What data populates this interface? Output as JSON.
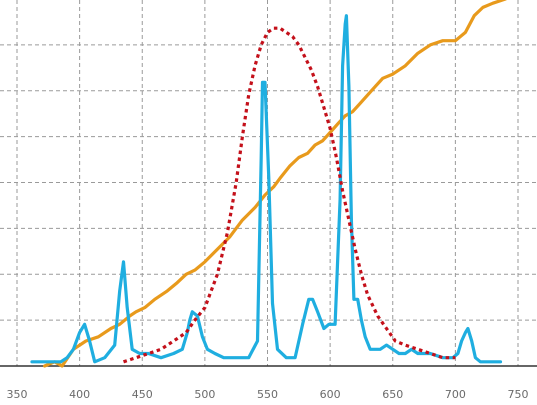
{
  "chart_data": {
    "type": "line",
    "title": "",
    "xlabel": "",
    "ylabel": "",
    "xlim": [
      350,
      750
    ],
    "ylim": [
      0,
      1
    ],
    "x_ticks": [
      350,
      400,
      450,
      500,
      550,
      600,
      650,
      700,
      750
    ],
    "x_tick_labels": [
      "350",
      "400",
      "450",
      "500",
      "550",
      "600",
      "650",
      "700",
      "750"
    ],
    "y_grid_values": [
      0.11,
      0.22,
      0.33,
      0.44,
      0.55,
      0.66,
      0.77,
      0.88
    ],
    "grid": true,
    "legend": "none",
    "series": [
      {
        "style": "solid",
        "color": "#e89a1c",
        "x": [
          372,
          380,
          386,
          395,
          405,
          415,
          425,
          432,
          440,
          445,
          452,
          460,
          470,
          478,
          485,
          492,
          500,
          510,
          520,
          530,
          540,
          548,
          555,
          560,
          568,
          575,
          582,
          588,
          594,
          600,
          606,
          612,
          618,
          624,
          630,
          636,
          642,
          650,
          660,
          670,
          680,
          690,
          700,
          708,
          715,
          722,
          730,
          740
        ],
        "y": [
          0.0,
          0.01,
          0.0,
          0.04,
          0.06,
          0.07,
          0.09,
          0.1,
          0.12,
          0.13,
          0.14,
          0.16,
          0.18,
          0.2,
          0.22,
          0.23,
          0.25,
          0.28,
          0.31,
          0.35,
          0.38,
          0.41,
          0.43,
          0.45,
          0.48,
          0.5,
          0.51,
          0.53,
          0.54,
          0.56,
          0.58,
          0.6,
          0.61,
          0.63,
          0.65,
          0.67,
          0.69,
          0.7,
          0.72,
          0.75,
          0.77,
          0.78,
          0.78,
          0.8,
          0.84,
          0.86,
          0.87,
          0.88
        ]
      },
      {
        "style": "solid",
        "color": "#1faee0",
        "x": [
          362,
          370,
          378,
          385,
          390,
          395,
          400,
          404,
          408,
          412,
          420,
          428,
          432,
          435,
          438,
          442,
          448,
          455,
          465,
          475,
          482,
          486,
          488,
          490,
          494,
          498,
          502,
          508,
          515,
          525,
          535,
          542,
          545,
          546,
          548,
          551,
          554,
          558,
          565,
          572,
          578,
          583,
          586,
          590,
          595,
          599,
          604,
          608,
          610,
          612,
          613,
          615,
          617,
          619,
          622,
          625,
          628,
          632,
          636,
          640,
          645,
          650,
          655,
          660,
          665,
          670,
          680,
          690,
          698,
          702,
          705,
          708,
          710,
          713,
          716,
          720,
          728,
          736
        ],
        "y": [
          0.01,
          0.01,
          0.01,
          0.01,
          0.02,
          0.04,
          0.08,
          0.1,
          0.06,
          0.01,
          0.02,
          0.05,
          0.18,
          0.25,
          0.14,
          0.04,
          0.03,
          0.03,
          0.02,
          0.03,
          0.04,
          0.08,
          0.11,
          0.13,
          0.12,
          0.07,
          0.04,
          0.03,
          0.02,
          0.02,
          0.02,
          0.06,
          0.5,
          0.68,
          0.68,
          0.45,
          0.15,
          0.04,
          0.02,
          0.02,
          0.1,
          0.16,
          0.16,
          0.13,
          0.09,
          0.1,
          0.1,
          0.4,
          0.72,
          0.82,
          0.84,
          0.67,
          0.35,
          0.16,
          0.16,
          0.11,
          0.07,
          0.04,
          0.04,
          0.04,
          0.05,
          0.04,
          0.03,
          0.03,
          0.04,
          0.03,
          0.03,
          0.02,
          0.02,
          0.03,
          0.06,
          0.08,
          0.09,
          0.06,
          0.02,
          0.01,
          0.01,
          0.01
        ]
      },
      {
        "style": "dotted",
        "color": "#c4101a",
        "x": [
          435,
          445,
          455,
          465,
          475,
          485,
          492,
          500,
          510,
          518,
          525,
          530,
          535,
          540,
          545,
          550,
          555,
          560,
          565,
          570,
          575,
          580,
          585,
          590,
          595,
          600,
          605,
          610,
          615,
          620,
          625,
          630,
          638,
          645,
          652,
          660,
          670,
          680,
          690,
          700
        ],
        "y": [
          0.01,
          0.02,
          0.03,
          0.04,
          0.06,
          0.08,
          0.11,
          0.14,
          0.22,
          0.32,
          0.44,
          0.55,
          0.65,
          0.72,
          0.77,
          0.8,
          0.81,
          0.81,
          0.8,
          0.79,
          0.77,
          0.74,
          0.71,
          0.67,
          0.62,
          0.57,
          0.5,
          0.42,
          0.35,
          0.28,
          0.22,
          0.17,
          0.12,
          0.09,
          0.06,
          0.05,
          0.04,
          0.03,
          0.02,
          0.02
        ]
      }
    ]
  }
}
